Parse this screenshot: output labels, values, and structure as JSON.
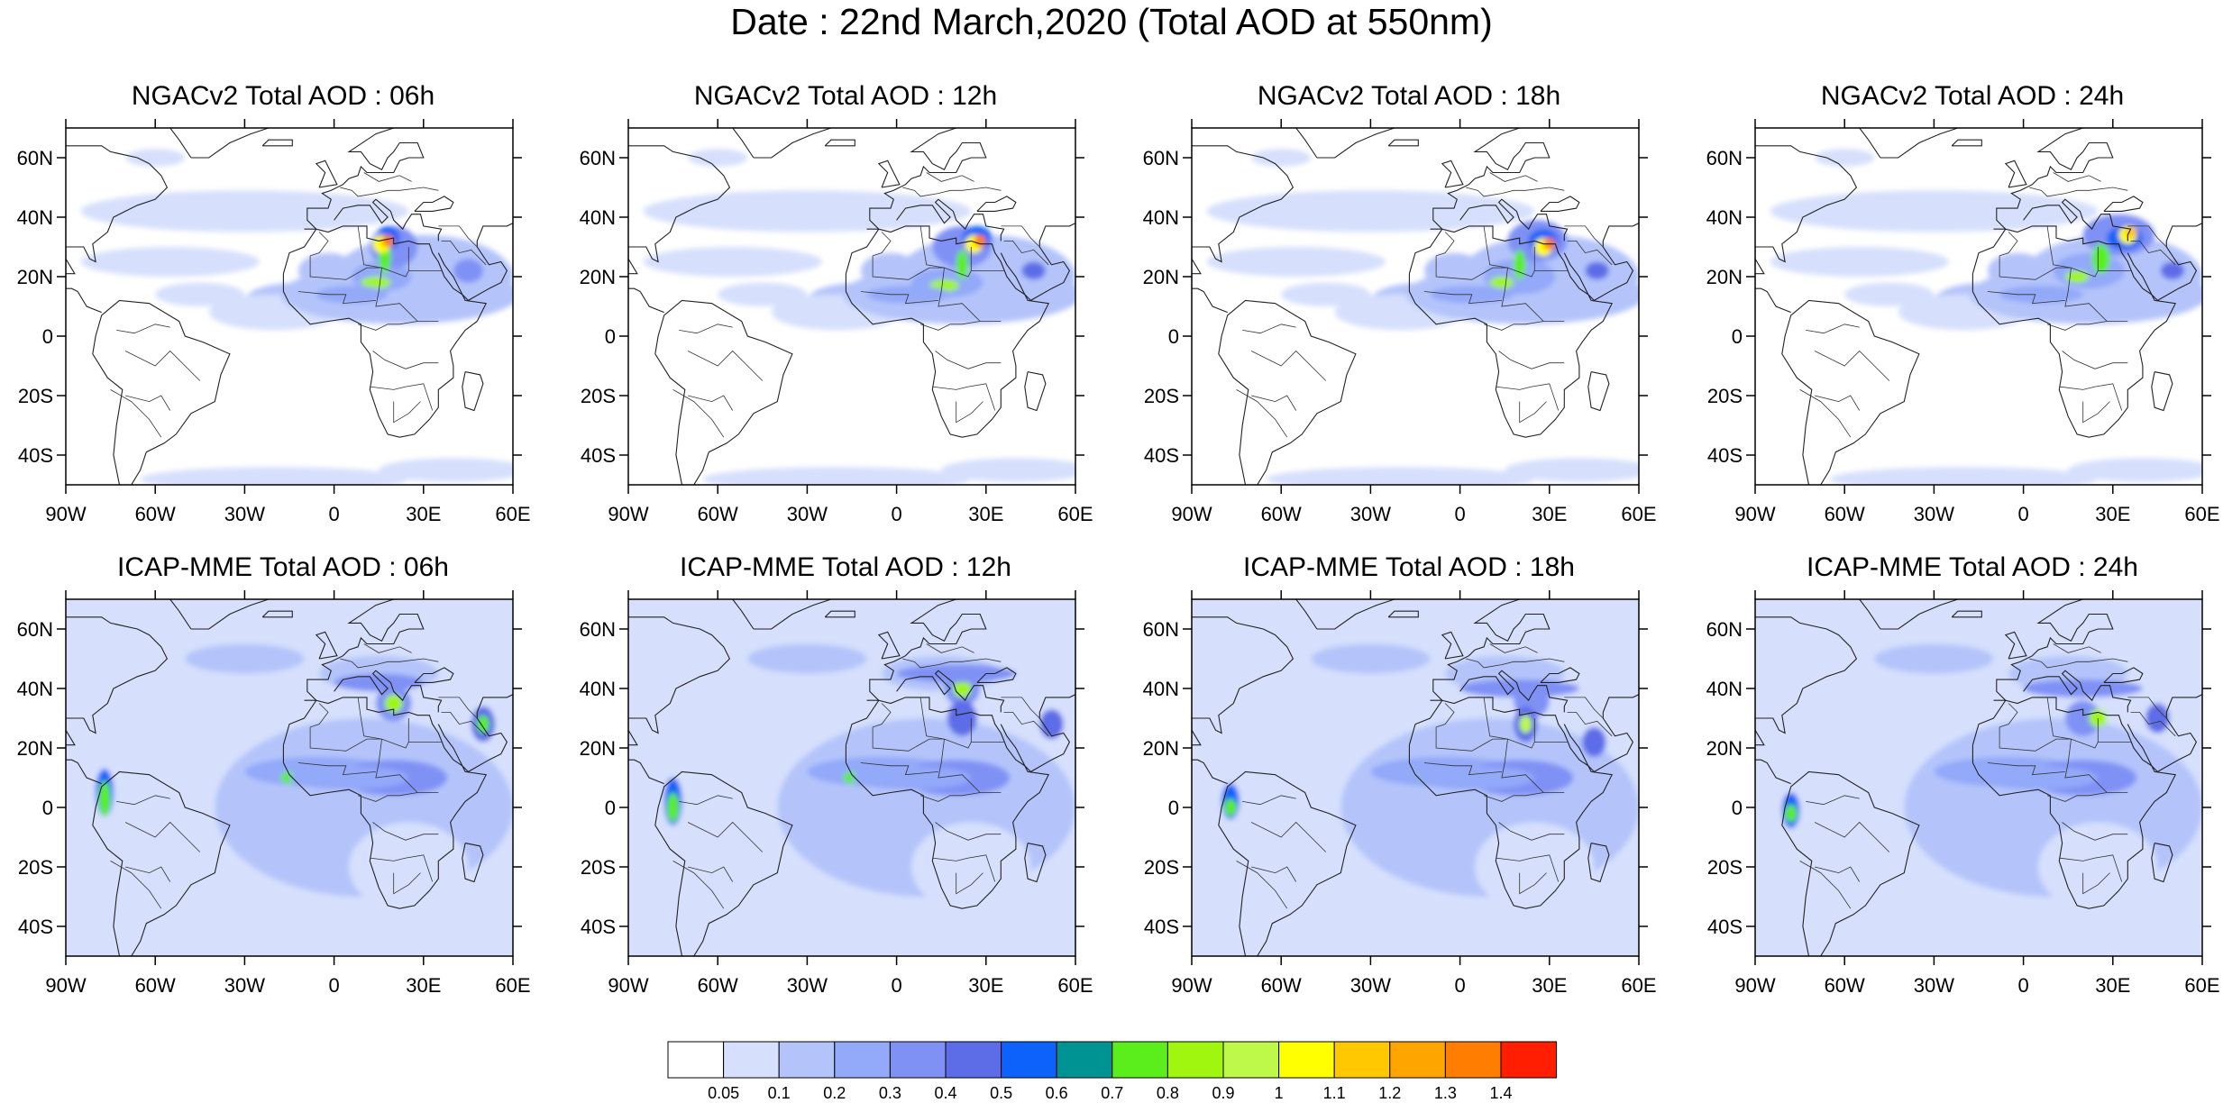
{
  "title": "Date : 22nd March,2020 (Total AOD at 550nm)",
  "panels": [
    {
      "title": "NGACv2 Total AOD : 06h",
      "model": "NGACv2",
      "hour": "06h"
    },
    {
      "title": "NGACv2 Total AOD : 12h",
      "model": "NGACv2",
      "hour": "12h"
    },
    {
      "title": "NGACv2 Total AOD : 18h",
      "model": "NGACv2",
      "hour": "18h"
    },
    {
      "title": "NGACv2 Total AOD : 24h",
      "model": "NGACv2",
      "hour": "24h"
    },
    {
      "title": "ICAP-MME Total AOD : 06h",
      "model": "ICAP-MME",
      "hour": "06h"
    },
    {
      "title": "ICAP-MME Total AOD : 12h",
      "model": "ICAP-MME",
      "hour": "12h"
    },
    {
      "title": "ICAP-MME Total AOD : 18h",
      "model": "ICAP-MME",
      "hour": "18h"
    },
    {
      "title": "ICAP-MME Total AOD : 24h",
      "model": "ICAP-MME",
      "hour": "24h"
    }
  ],
  "axes": {
    "lat_range": [
      -50,
      70
    ],
    "lon_range": [
      -90,
      60
    ],
    "lat_ticks": [
      {
        "value": 60,
        "label": "60N"
      },
      {
        "value": 40,
        "label": "40N"
      },
      {
        "value": 20,
        "label": "20N"
      },
      {
        "value": 0,
        "label": "0"
      },
      {
        "value": -20,
        "label": "20S"
      },
      {
        "value": -40,
        "label": "40S"
      }
    ],
    "lon_ticks": [
      {
        "value": -90,
        "label": "90W"
      },
      {
        "value": -60,
        "label": "60W"
      },
      {
        "value": -30,
        "label": "30W"
      },
      {
        "value": 0,
        "label": "0"
      },
      {
        "value": 30,
        "label": "30E"
      },
      {
        "value": 60,
        "label": "60E"
      }
    ]
  },
  "colorbar": {
    "colors": [
      "#ffffff",
      "#d6e0fc",
      "#b4c4fa",
      "#93a9f9",
      "#7f91f5",
      "#5d6de8",
      "#0d62fb",
      "#009393",
      "#5cee1c",
      "#a0f60f",
      "#bef94a",
      "#ffff00",
      "#ffc800",
      "#ffa500",
      "#ff7d00",
      "#ff1e00"
    ],
    "labels": [
      "0.05",
      "0.1",
      "0.2",
      "0.3",
      "0.4",
      "0.5",
      "0.6",
      "0.7",
      "0.8",
      "0.9",
      "1",
      "1.1",
      "1.2",
      "1.3",
      "1.4"
    ]
  }
}
